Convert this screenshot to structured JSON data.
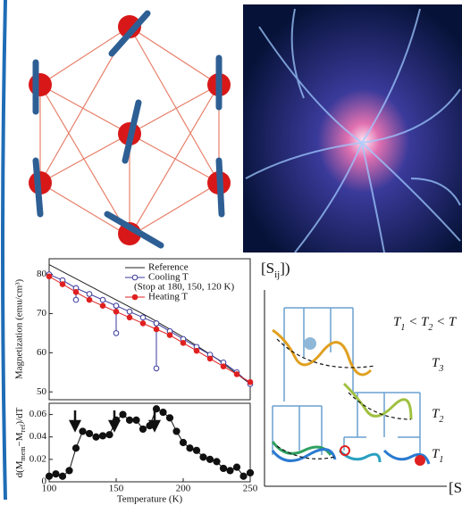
{
  "chart_data": [
    {
      "type": "line",
      "ylabel": "Magnetization (emu/cm³)",
      "xlim": [
        100,
        250
      ],
      "ylim": [
        48,
        84
      ],
      "yticks": [
        50,
        60,
        70,
        80
      ],
      "legend_note": "(Stop at 180, 150, 120 K)",
      "series": [
        {
          "name": "Reference",
          "color": "#222222",
          "marker": "none",
          "x": [
            100,
            125,
            150,
            175,
            200,
            225,
            250
          ],
          "values": [
            82.5,
            78,
            73.5,
            69,
            64,
            58.5,
            52
          ]
        },
        {
          "name": "Cooling T",
          "color": "#3a3a9c",
          "marker": "open",
          "x": [
            100,
            110,
            120,
            120,
            120,
            130,
            140,
            150,
            150,
            150,
            160,
            170,
            180,
            180,
            180,
            190,
            200,
            210,
            220,
            230,
            240,
            250
          ],
          "values": [
            80,
            78.5,
            76.5,
            73.5,
            76.5,
            75,
            73.5,
            72,
            65,
            72,
            70.5,
            69,
            67.5,
            56,
            67.5,
            65.5,
            63.5,
            61.5,
            59.5,
            57.5,
            55,
            52
          ]
        },
        {
          "name": "Heating T",
          "color": "#e02020",
          "marker": "filled",
          "x": [
            100,
            110,
            120,
            130,
            140,
            150,
            160,
            170,
            180,
            190,
            200,
            210,
            220,
            230,
            240,
            250
          ],
          "values": [
            79.5,
            77.5,
            75.5,
            73.5,
            72,
            70.5,
            69,
            67.5,
            66,
            64.5,
            62.5,
            60.5,
            58.5,
            56.5,
            54.5,
            52.5
          ]
        }
      ]
    },
    {
      "type": "line",
      "ylabel": [
        "d(M",
        "mem",
        "−M",
        "ref",
        ")/dT"
      ],
      "xlabel": "Temperature (K)",
      "xlim": [
        100,
        250
      ],
      "ylim": [
        0,
        0.07
      ],
      "yticks": [
        0,
        0.02,
        0.04,
        0.06
      ],
      "xticks": [
        100,
        150,
        200,
        250
      ],
      "series": [
        {
          "color": "#111111",
          "marker": "filled",
          "x": [
            100,
            105,
            110,
            115,
            120,
            125,
            130,
            135,
            140,
            145,
            150,
            155,
            160,
            165,
            170,
            175,
            180,
            185,
            190,
            195,
            200,
            205,
            210,
            215,
            220,
            225,
            230,
            235,
            240,
            245,
            250
          ],
          "values": [
            0.005,
            0.007,
            0.005,
            0.01,
            0.03,
            0.045,
            0.043,
            0.04,
            0.041,
            0.042,
            0.055,
            0.06,
            0.055,
            0.055,
            0.047,
            0.05,
            0.065,
            0.062,
            0.057,
            0.045,
            0.035,
            0.03,
            0.028,
            0.022,
            0.02,
            0.018,
            0.012,
            0.01,
            0.013,
            0.005,
            0.008
          ]
        }
      ]
    }
  ],
  "diagram": {
    "state_label": [
      "[S",
      "ij",
      "])"
    ],
    "order_label": [
      "T",
      "1",
      " < T",
      "2",
      " < T"
    ],
    "levels": [
      [
        "T",
        "3"
      ],
      [
        "T",
        "2"
      ],
      [
        "T",
        "1"
      ]
    ],
    "axis_label": "[S"
  }
}
